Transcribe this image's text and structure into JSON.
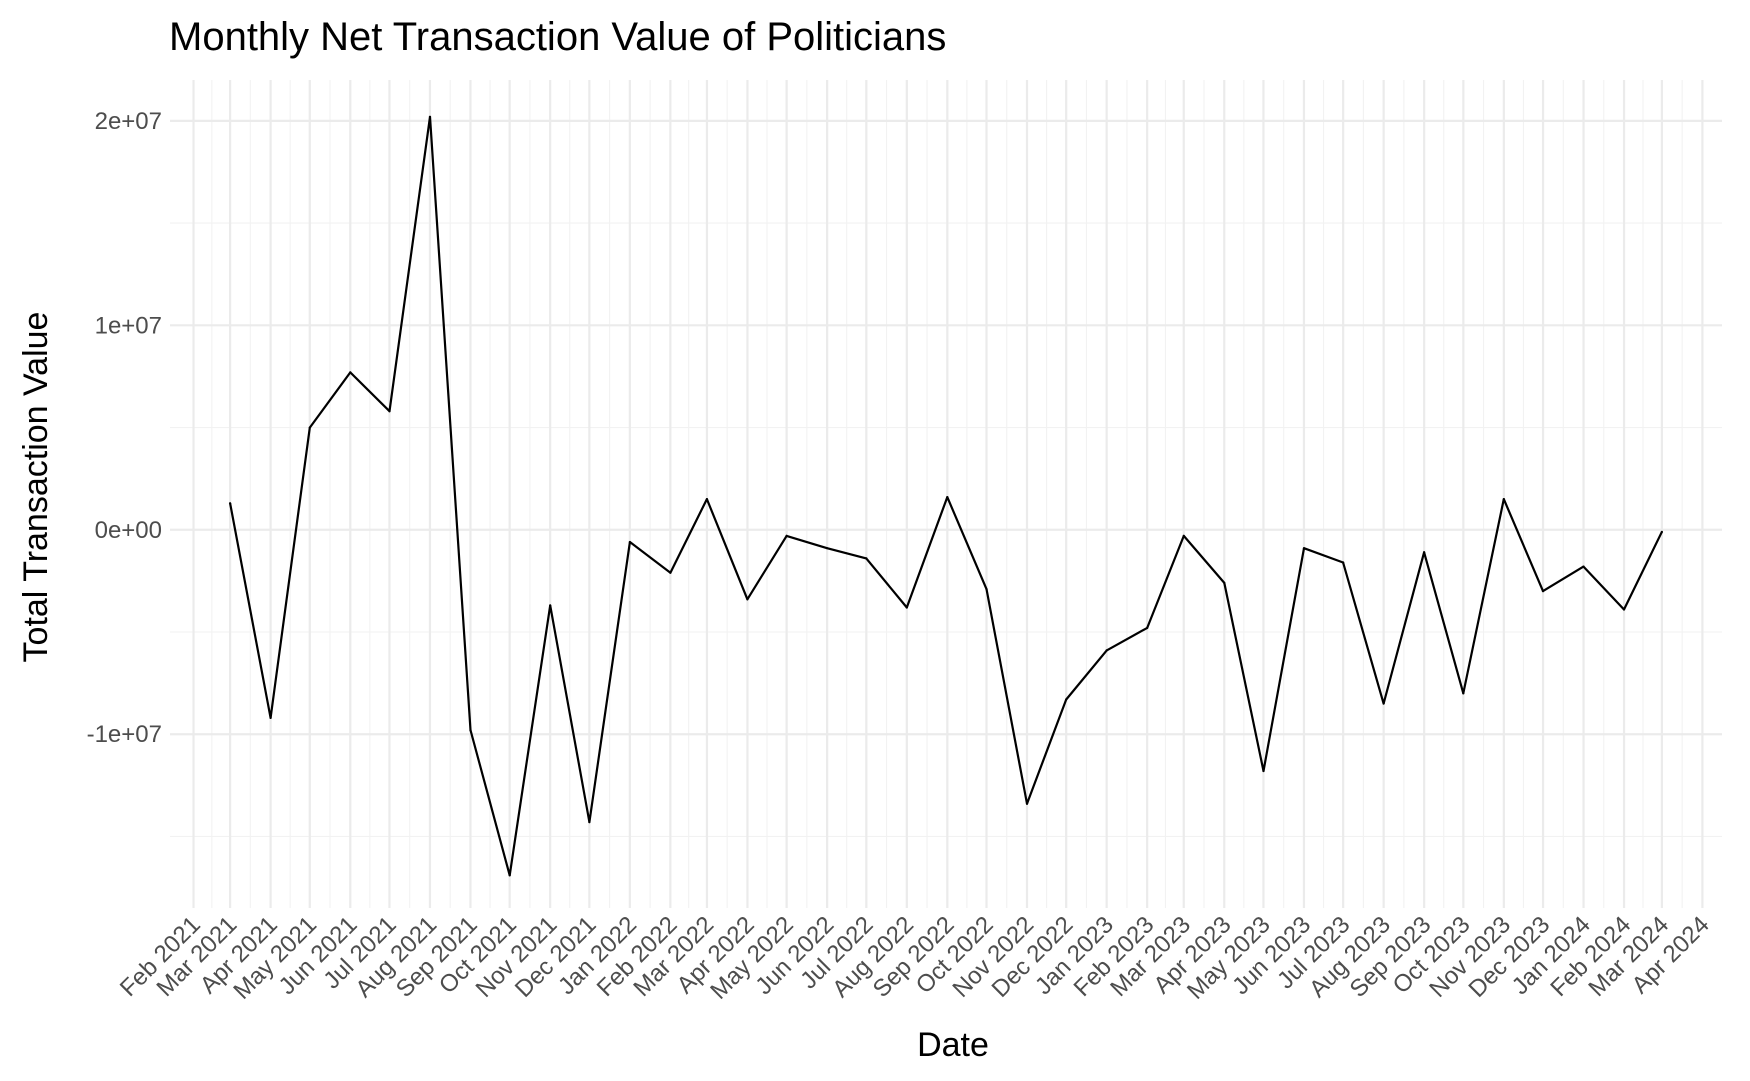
{
  "chart_data": {
    "type": "line",
    "title": "Monthly Net Transaction Value of Politicians",
    "xlabel": "Date",
    "ylabel": "Total Transaction Value",
    "x_tick_labels": [
      "Feb 2021",
      "Mar 2021",
      "Apr 2021",
      "May 2021",
      "Jun 2021",
      "Jul 2021",
      "Aug 2021",
      "Sep 2021",
      "Oct 2021",
      "Nov 2021",
      "Dec 2021",
      "Jan 2022",
      "Feb 2022",
      "Mar 2022",
      "Apr 2022",
      "May 2022",
      "Jun 2022",
      "Jul 2022",
      "Aug 2022",
      "Sep 2022",
      "Oct 2022",
      "Nov 2022",
      "Dec 2022",
      "Jan 2023",
      "Feb 2023",
      "Mar 2023",
      "Apr 2023",
      "May 2023",
      "Jun 2023",
      "Jul 2023",
      "Aug 2023",
      "Sep 2023",
      "Oct 2023",
      "Nov 2023",
      "Dec 2023",
      "Jan 2024",
      "Feb 2024",
      "Mar 2024",
      "Apr 2024"
    ],
    "y_ticks": [
      {
        "value": 20000000,
        "label": "2e+07"
      },
      {
        "value": 10000000,
        "label": "1e+07"
      },
      {
        "value": 0,
        "label": "0e+00"
      },
      {
        "value": -10000000,
        "label": "-1e+07"
      }
    ],
    "ylim": [
      -18500000,
      22000000
    ],
    "x_range": [
      "2021-01-14",
      "2024-04-16"
    ],
    "grid": true,
    "legend": "none",
    "series": [
      {
        "color": "#000000",
        "points": [
          {
            "x": "2021-03-01",
            "y": 1300000
          },
          {
            "x": "2021-04-01",
            "y": -9200000
          },
          {
            "x": "2021-05-01",
            "y": 5000000
          },
          {
            "x": "2021-06-01",
            "y": 7700000
          },
          {
            "x": "2021-07-01",
            "y": 5800000
          },
          {
            "x": "2021-08-01",
            "y": 20200000
          },
          {
            "x": "2021-09-01",
            "y": -9800000
          },
          {
            "x": "2021-10-01",
            "y": -16900000
          },
          {
            "x": "2021-11-01",
            "y": -3700000
          },
          {
            "x": "2021-12-01",
            "y": -14300000
          },
          {
            "x": "2022-01-01",
            "y": -600000
          },
          {
            "x": "2022-02-01",
            "y": -2100000
          },
          {
            "x": "2022-03-01",
            "y": 1500000
          },
          {
            "x": "2022-04-01",
            "y": -3400000
          },
          {
            "x": "2022-05-01",
            "y": -300000
          },
          {
            "x": "2022-06-01",
            "y": -900000
          },
          {
            "x": "2022-07-01",
            "y": -1400000
          },
          {
            "x": "2022-08-01",
            "y": -3800000
          },
          {
            "x": "2022-09-01",
            "y": 1600000
          },
          {
            "x": "2022-10-01",
            "y": -2900000
          },
          {
            "x": "2022-11-01",
            "y": -13400000
          },
          {
            "x": "2022-12-01",
            "y": -8300000
          },
          {
            "x": "2023-01-01",
            "y": -5900000
          },
          {
            "x": "2023-02-01",
            "y": -4800000
          },
          {
            "x": "2023-03-01",
            "y": -300000
          },
          {
            "x": "2023-04-01",
            "y": -2600000
          },
          {
            "x": "2023-05-01",
            "y": -11800000
          },
          {
            "x": "2023-06-01",
            "y": -900000
          },
          {
            "x": "2023-07-01",
            "y": -1600000
          },
          {
            "x": "2023-08-01",
            "y": -8500000
          },
          {
            "x": "2023-09-01",
            "y": -1100000
          },
          {
            "x": "2023-10-01",
            "y": -8000000
          },
          {
            "x": "2023-11-01",
            "y": 1500000
          },
          {
            "x": "2023-12-01",
            "y": -3000000
          },
          {
            "x": "2024-01-01",
            "y": -1800000
          },
          {
            "x": "2024-02-01",
            "y": -3900000
          },
          {
            "x": "2024-03-01",
            "y": -100000
          }
        ]
      }
    ]
  }
}
